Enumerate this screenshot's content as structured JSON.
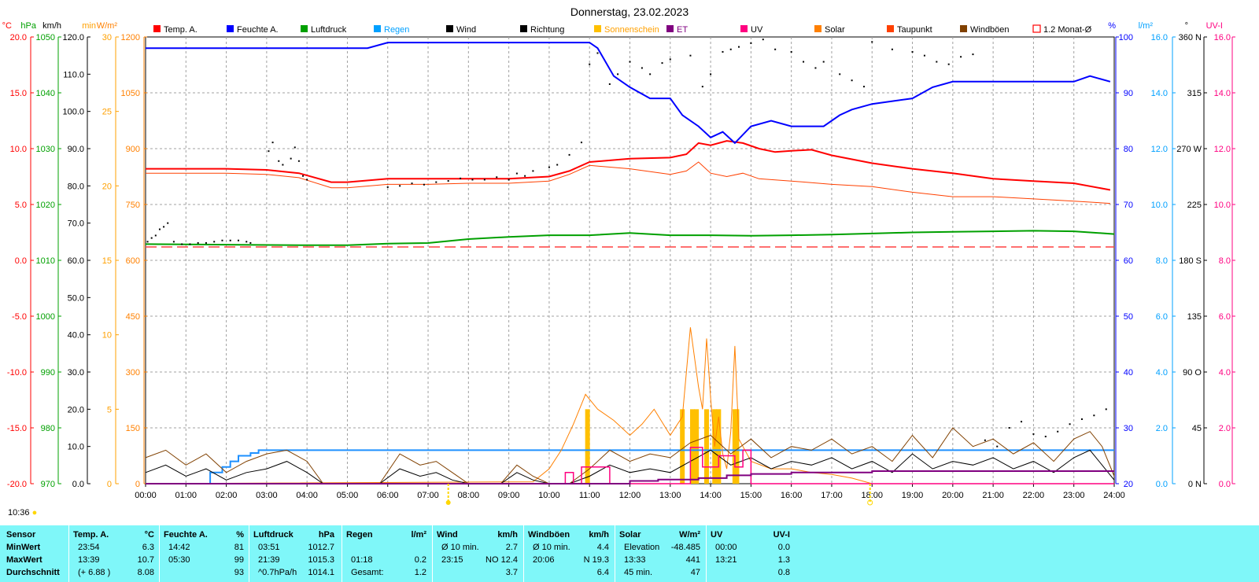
{
  "title": "Donnerstag, 23.02.2023",
  "current_time": "10:36",
  "legend": [
    {
      "label": "Temp. A.",
      "color": "#ff0000",
      "shape": "box"
    },
    {
      "label": "Feuchte A.",
      "color": "#0000ff",
      "shape": "box"
    },
    {
      "label": "Luftdruck",
      "color": "#00a000",
      "shape": "box"
    },
    {
      "label": "Regen",
      "color": "#00a0ff",
      "shape": "box"
    },
    {
      "label": "Wind",
      "color": "#000000",
      "shape": "box"
    },
    {
      "label": "Richtung",
      "color": "#000000",
      "shape": "box"
    },
    {
      "label": "Sonnenschein",
      "color": "#ffc000",
      "shape": "box"
    },
    {
      "label": "ET",
      "color": "#800080",
      "shape": "box"
    },
    {
      "label": "UV",
      "color": "#ff0080",
      "shape": "box"
    },
    {
      "label": "Solar",
      "color": "#ff8000",
      "shape": "box"
    },
    {
      "label": "Taupunkt",
      "color": "#ff4000",
      "shape": "box"
    },
    {
      "label": "Windböen",
      "color": "#804000",
      "shape": "box"
    },
    {
      "label": "1.2 Monat-Ø",
      "color": "#ff0000",
      "shape": "outline"
    }
  ],
  "axes": {
    "temp": {
      "unit": "°C",
      "color": "#ff0000",
      "ticks": [
        "20.0",
        "15.0",
        "10.0",
        "5.0",
        "0.0",
        "-5.0",
        "-10.0",
        "-15.0",
        "-20.0"
      ]
    },
    "press": {
      "unit": "hPa",
      "color": "#00a000",
      "ticks": [
        "1050",
        "1040",
        "1030",
        "1020",
        "1010",
        "1000",
        "990",
        "980",
        "970"
      ]
    },
    "wind": {
      "unit": "km/h",
      "color": "#000000",
      "ticks": [
        "120.0",
        "110.0",
        "100.0",
        "90.0",
        "80.0",
        "70.0",
        "60.0",
        "50.0",
        "40.0",
        "30.0",
        "20.0",
        "10.0",
        "0.0"
      ]
    },
    "sunmin": {
      "unit": "min",
      "color": "#ffa000",
      "ticks": [
        "30",
        "25",
        "20",
        "15",
        "10",
        "5",
        "0"
      ]
    },
    "solar": {
      "unit": "W/m²",
      "color": "#ff8000",
      "ticks": [
        "1200",
        "1050",
        "900",
        "750",
        "600",
        "450",
        "300",
        "150",
        "0"
      ]
    },
    "hum": {
      "unit": "%",
      "color": "#0000ff",
      "ticks": [
        "100",
        "90",
        "80",
        "70",
        "60",
        "50",
        "40",
        "30",
        "20"
      ]
    },
    "rain": {
      "unit": "l/m²",
      "color": "#00a0ff",
      "ticks": [
        "16.0",
        "14.0",
        "12.0",
        "10.0",
        "8.0",
        "6.0",
        "4.0",
        "2.0",
        "0.0"
      ]
    },
    "dir": {
      "unit": "°",
      "color": "#000000",
      "ticks": [
        "360 N",
        "315",
        "270 W",
        "225",
        "180 S",
        "135",
        "90 O",
        "45",
        "0 N"
      ]
    },
    "uv": {
      "unit": "UV-I",
      "color": "#ff0080",
      "ticks": [
        "16.0",
        "14.0",
        "12.0",
        "10.0",
        "8.0",
        "6.0",
        "4.0",
        "2.0",
        "0.0"
      ]
    },
    "time": {
      "ticks": [
        "00:00",
        "01:00",
        "02:00",
        "03:00",
        "04:00",
        "05:00",
        "06:00",
        "07:00",
        "08:00",
        "09:00",
        "10:00",
        "11:00",
        "12:00",
        "13:00",
        "14:00",
        "15:00",
        "16:00",
        "17:00",
        "18:00",
        "19:00",
        "20:00",
        "21:00",
        "22:00",
        "23:00",
        "24:00"
      ]
    }
  },
  "chart_data": {
    "type": "line",
    "title": "Donnerstag, 23.02.2023",
    "x_range": [
      "00:00",
      "24:00"
    ],
    "series": [
      {
        "name": "Temp. A.",
        "axis": "temp",
        "color": "#ff0000",
        "width": 2,
        "x": [
          0,
          1,
          2,
          3,
          3.8,
          4.6,
          5,
          6,
          7,
          8,
          9,
          10,
          10.5,
          11,
          12,
          13,
          13.4,
          13.7,
          14,
          14.4,
          14.8,
          15.2,
          15.6,
          16,
          16.5,
          17,
          18,
          19,
          20,
          21,
          22,
          23,
          23.9
        ],
        "y": [
          8.2,
          8.2,
          8.2,
          8.1,
          7.8,
          7.0,
          7.0,
          7.3,
          7.3,
          7.3,
          7.3,
          7.5,
          8.0,
          8.8,
          9.1,
          9.2,
          9.5,
          10.5,
          10.3,
          10.7,
          10.5,
          10.0,
          9.7,
          9.8,
          9.9,
          9.4,
          8.7,
          8.2,
          7.8,
          7.3,
          7.1,
          6.9,
          6.3
        ]
      },
      {
        "name": "Taupunkt",
        "axis": "temp",
        "color": "#ff4000",
        "width": 1,
        "x": [
          0,
          1,
          2,
          3,
          3.8,
          4.6,
          5,
          6,
          7,
          8,
          9,
          10,
          10.5,
          11,
          12,
          13,
          13.4,
          13.7,
          14,
          14.4,
          14.8,
          15.2,
          16,
          17,
          18,
          19,
          20,
          21,
          22,
          23,
          23.9
        ],
        "y": [
          7.8,
          7.8,
          7.8,
          7.7,
          7.4,
          6.5,
          6.5,
          6.8,
          6.8,
          6.9,
          6.9,
          7.1,
          7.7,
          8.5,
          8.2,
          7.7,
          8.0,
          8.8,
          7.8,
          7.5,
          7.8,
          7.3,
          7.1,
          6.8,
          6.6,
          6.1,
          5.7,
          5.7,
          5.5,
          5.3,
          5.1
        ]
      },
      {
        "name": "Feuchte A.",
        "axis": "hum",
        "color": "#0000ff",
        "width": 2,
        "x": [
          0,
          5.5,
          6,
          8,
          10,
          11,
          11.2,
          11.6,
          12,
          12.5,
          13,
          13.3,
          13.7,
          14,
          14.3,
          14.6,
          15,
          15.5,
          16,
          16.8,
          17.2,
          17.5,
          18,
          19,
          19.5,
          20,
          21,
          23,
          23.4,
          23.9
        ],
        "y": [
          98,
          98,
          99,
          99,
          99,
          99,
          98,
          93,
          91,
          89,
          89,
          86,
          84,
          82,
          83,
          81,
          84,
          85,
          84,
          84,
          86,
          87,
          88,
          89,
          91,
          92,
          92,
          92,
          93,
          92
        ]
      },
      {
        "name": "Luftdruck",
        "axis": "press",
        "color": "#00a000",
        "width": 2,
        "x": [
          0,
          2,
          3.9,
          5,
          6,
          7,
          8,
          9,
          10,
          11,
          12,
          13,
          14,
          15,
          16,
          17,
          18,
          19,
          20,
          21,
          22,
          23,
          24
        ],
        "y": [
          1012.9,
          1012.8,
          1012.7,
          1012.7,
          1013,
          1013.1,
          1013.8,
          1014.2,
          1014.5,
          1014.5,
          1014.9,
          1014.5,
          1014.5,
          1014.4,
          1014.5,
          1014.6,
          1014.8,
          1015.0,
          1015.1,
          1015.2,
          1015.3,
          1015.2,
          1014.7
        ]
      },
      {
        "name": "1.2 Monat-Ø",
        "axis": "temp",
        "color": "#ff4040",
        "width": 1.5,
        "dash": "14,6",
        "x": [
          0,
          24
        ],
        "y": [
          1.2,
          1.2
        ]
      },
      {
        "name": "Regen",
        "axis": "rain",
        "color": "#1e90ff",
        "width": 2,
        "step": true,
        "x": [
          0,
          1.2,
          1.6,
          1.9,
          2.1,
          2.3,
          2.6,
          2.8,
          3.0,
          24
        ],
        "y": [
          0,
          0,
          0.4,
          0.6,
          0.8,
          1.0,
          1.1,
          1.2,
          1.2,
          1.2
        ]
      },
      {
        "name": "Solar",
        "axis": "solar",
        "color": "#ff8000",
        "width": 1,
        "x": [
          0,
          9.6,
          10.0,
          10.3,
          10.6,
          10.9,
          11.2,
          11.6,
          12.0,
          12.3,
          12.6,
          13.0,
          13.3,
          13.5,
          13.7,
          13.8,
          13.9,
          14.0,
          14.1,
          14.2,
          14.3,
          14.4,
          14.5,
          14.6,
          14.7,
          15,
          15.5,
          16,
          16.5,
          17,
          17.5,
          18,
          24
        ],
        "y": [
          0,
          5,
          40,
          90,
          160,
          240,
          200,
          170,
          130,
          160,
          200,
          130,
          180,
          420,
          260,
          200,
          390,
          230,
          100,
          180,
          80,
          40,
          140,
          370,
          120,
          60,
          40,
          40,
          30,
          25,
          15,
          0,
          0
        ]
      },
      {
        "name": "Wind",
        "axis": "wind",
        "color": "#000000",
        "width": 1,
        "x": [
          0,
          0.5,
          1,
          1.5,
          2,
          2.5,
          3,
          3.5,
          4,
          4.4,
          5.8,
          6.3,
          6.8,
          7.2,
          7.6,
          8,
          8.8,
          9.2,
          9.6,
          10,
          10.5,
          11,
          11.5,
          12,
          12.5,
          13,
          13.5,
          14,
          14.5,
          15,
          15.5,
          16,
          16.5,
          17,
          17.5,
          18,
          18.5,
          19,
          19.5,
          20,
          20.5,
          21,
          21.5,
          22,
          22.5,
          23,
          23.4,
          23.7,
          24
        ],
        "y": [
          3,
          5,
          2,
          4,
          1,
          3,
          4,
          6,
          3,
          0,
          0,
          4,
          2,
          3,
          1,
          0,
          0,
          3,
          1,
          0,
          0,
          2,
          5,
          3,
          4,
          3,
          6,
          9,
          5,
          7,
          4,
          6,
          5,
          7,
          4,
          6,
          3,
          8,
          4,
          6,
          5,
          7,
          4,
          6,
          3,
          7,
          9,
          5,
          1
        ]
      },
      {
        "name": "Windböen",
        "axis": "wind",
        "color": "#804000",
        "width": 1,
        "x": [
          0,
          0.5,
          1,
          1.5,
          2,
          2.5,
          3,
          3.5,
          4,
          4.4,
          5.8,
          6.3,
          6.8,
          7.2,
          7.6,
          8,
          8.8,
          9.2,
          9.6,
          10,
          10.5,
          11,
          11.5,
          12,
          12.5,
          13,
          13.5,
          14,
          14.5,
          15,
          15.5,
          16,
          16.5,
          17,
          17.5,
          18,
          18.5,
          19,
          19.5,
          20,
          20.5,
          21,
          21.5,
          22,
          22.5,
          23,
          23.4,
          23.7,
          24
        ],
        "y": [
          7,
          9,
          5,
          8,
          3,
          6,
          8,
          9,
          6,
          0,
          0,
          8,
          5,
          6,
          3,
          0,
          0,
          5,
          2,
          0,
          0,
          4,
          9,
          6,
          8,
          7,
          11,
          13,
          8,
          12,
          7,
          10,
          9,
          12,
          8,
          10,
          6,
          13,
          7,
          15,
          10,
          12,
          8,
          11,
          6,
          12,
          14,
          10,
          2
        ]
      },
      {
        "name": "UV",
        "axis": "uv",
        "color": "#ff0080",
        "width": 1.5,
        "step": true,
        "x": [
          0,
          10.3,
          10.4,
          10.6,
          10.8,
          11.4,
          11.5,
          13.3,
          13.5,
          13.8,
          14.2,
          14.6,
          14.8,
          15.0,
          24
        ],
        "y": [
          0,
          0,
          0.4,
          0,
          0.6,
          0.6,
          0,
          0,
          1.3,
          0.6,
          1.0,
          0.6,
          1.2,
          0,
          0
        ]
      },
      {
        "name": "ET",
        "axis": "uv",
        "color": "#800080",
        "width": 2,
        "step": true,
        "x": [
          0,
          11,
          12,
          12.7,
          13.7,
          14.4,
          15,
          16,
          18,
          19,
          24
        ],
        "y": [
          0,
          0,
          0.1,
          0.15,
          0.2,
          0.3,
          0.35,
          0.4,
          0.45,
          0.45,
          0.45
        ]
      }
    ],
    "sunshine_bars": {
      "axis": "sunmin",
      "color": "#ffc000",
      "x": [
        10.95,
        13.3,
        13.55,
        13.65,
        13.9,
        14.1,
        14.2,
        14.6,
        14.65
      ],
      "values": [
        5,
        5,
        5,
        5,
        5,
        5,
        5,
        5,
        5
      ]
    },
    "wind_direction_points": {
      "axis": "dir",
      "x": [
        0.05,
        0.15,
        0.25,
        0.35,
        0.45,
        0.55,
        0.7,
        0.9,
        1.1,
        1.3,
        1.5,
        1.7,
        1.9,
        2.1,
        2.3,
        2.5,
        2.6,
        3.05,
        3.15,
        3.3,
        3.4,
        3.6,
        3.7,
        3.8,
        3.9,
        4.0,
        6.0,
        6.3,
        6.6,
        6.9,
        7.2,
        7.5,
        7.8,
        8.1,
        8.4,
        8.7,
        9.0,
        9.2,
        9.4,
        9.6,
        10.0,
        10.2,
        10.5,
        10.8,
        11.0,
        11.2,
        11.5,
        11.7,
        12.0,
        12.3,
        12.5,
        12.8,
        13.0,
        13.5,
        13.8,
        14.0,
        14.3,
        14.5,
        14.7,
        15.0,
        15.3,
        15.6,
        16.0,
        16.3,
        16.6,
        16.8,
        17.2,
        17.5,
        17.8,
        18.0,
        18.5,
        19.0,
        19.3,
        19.6,
        19.9,
        20.2,
        20.5,
        20.8,
        21.1,
        21.4,
        21.7,
        22.0,
        22.3,
        22.6,
        22.9,
        23.2,
        23.5,
        23.8
      ],
      "y": [
        195,
        198,
        200,
        205,
        207,
        210,
        195,
        193,
        193,
        194,
        194,
        195,
        196,
        196,
        196,
        195,
        194,
        268,
        275,
        260,
        257,
        262,
        271,
        260,
        248,
        245,
        239,
        240,
        242,
        241,
        243,
        244,
        246,
        245,
        245,
        247,
        245,
        250,
        248,
        252,
        255,
        257,
        265,
        275,
        338,
        347,
        322,
        330,
        340,
        335,
        330,
        339,
        342,
        345,
        320,
        330,
        348,
        350,
        352,
        355,
        358,
        350,
        348,
        340,
        335,
        340,
        330,
        325,
        320,
        356,
        350,
        348,
        345,
        340,
        338,
        344,
        346,
        35,
        30,
        45,
        50,
        40,
        38,
        42,
        48,
        52,
        55,
        60
      ]
    }
  },
  "stats": {
    "headers": [
      {
        "name": "Sensor",
        "unit": ""
      },
      {
        "name": "Temp. A.",
        "unit": "°C"
      },
      {
        "name": "Feuchte A.",
        "unit": "%"
      },
      {
        "name": "Luftdruck",
        "unit": "hPa"
      },
      {
        "name": "Regen",
        "unit": "l/m²"
      },
      {
        "name": "Wind",
        "unit": "km/h"
      },
      {
        "name": "Windböen",
        "unit": "km/h"
      },
      {
        "name": "Solar",
        "unit": "W/m²"
      },
      {
        "name": "UV",
        "unit": "UV-I"
      }
    ],
    "rows": [
      {
        "label": "MinWert",
        "cells": [
          [
            "23:54",
            "6.3"
          ],
          [
            "14:42",
            "81"
          ],
          [
            "03:51",
            "1012.7"
          ],
          [
            "",
            ""
          ],
          [
            "Ø 10 min.",
            "2.7"
          ],
          [
            "Ø 10 min.",
            "4.4"
          ],
          [
            "Elevation",
            "-48.485"
          ],
          [
            "00:00",
            "0.0"
          ]
        ]
      },
      {
        "label": "MaxWert",
        "cells": [
          [
            "13:39",
            "10.7"
          ],
          [
            "05:30",
            "99"
          ],
          [
            "21:39",
            "1015.3"
          ],
          [
            "01:18",
            "0.2"
          ],
          [
            "23:15",
            "NO 12.4"
          ],
          [
            "20:06",
            "N 19.3"
          ],
          [
            "13:33",
            "441"
          ],
          [
            "13:21",
            "1.3"
          ]
        ]
      },
      {
        "label": "Durchschnitt",
        "cells": [
          [
            "(+ 6.88 )",
            "8.08"
          ],
          [
            "",
            "93"
          ],
          [
            "^0.7hPa/h",
            "1014.1"
          ],
          [
            "Gesamt:",
            "1.2"
          ],
          [
            "",
            "3.7"
          ],
          [
            "",
            "6.4"
          ],
          [
            "45 min.",
            "47"
          ],
          [
            "",
            "0.8"
          ]
        ]
      }
    ]
  }
}
